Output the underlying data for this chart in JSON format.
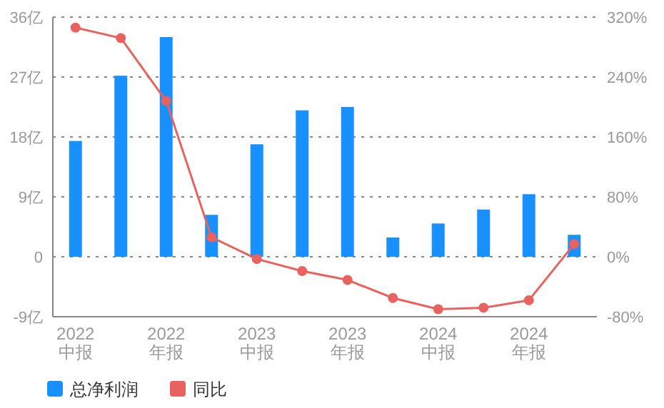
{
  "chart_data": {
    "type": "bar",
    "categories": [
      "2022\n中报",
      null,
      "2022\n年报",
      null,
      "2023\n中报",
      null,
      "2023\n年报",
      null,
      "2024\n中报",
      null,
      "2024\n年报",
      null
    ],
    "series": [
      {
        "name": "总净利润",
        "color": "#1890ff",
        "values": [
          17.4,
          27.2,
          33.0,
          6.3,
          16.9,
          22.0,
          22.5,
          2.9,
          5.0,
          7.1,
          9.4,
          3.3
        ]
      },
      {
        "name": "同比",
        "type": "line",
        "axis": "y2",
        "color": "#e8625f",
        "marker": "circle",
        "values": [
          306,
          292,
          208,
          26,
          -3,
          -19,
          -31,
          -55,
          -70,
          -68,
          -58,
          17
        ]
      }
    ],
    "ylim": [
      -9,
      36
    ],
    "yticks": [
      {
        "value": -9,
        "label": "-9亿"
      },
      0,
      {
        "value": 9,
        "label": "9亿"
      },
      {
        "value": 18,
        "label": "18亿"
      },
      {
        "value": 27,
        "label": "27亿"
      },
      {
        "value": 36,
        "label": "36亿"
      }
    ],
    "y2lim": [
      -80,
      320
    ],
    "y2ticks": [
      {
        "value": -80,
        "label": "-80%"
      },
      {
        "value": 0,
        "label": "0%"
      },
      {
        "value": 80,
        "label": "80%"
      },
      {
        "value": 160,
        "label": "160%"
      },
      {
        "value": 240,
        "label": "240%"
      },
      {
        "value": 320,
        "label": "320%"
      }
    ],
    "grid": "y",
    "legend": "bottom left"
  }
}
